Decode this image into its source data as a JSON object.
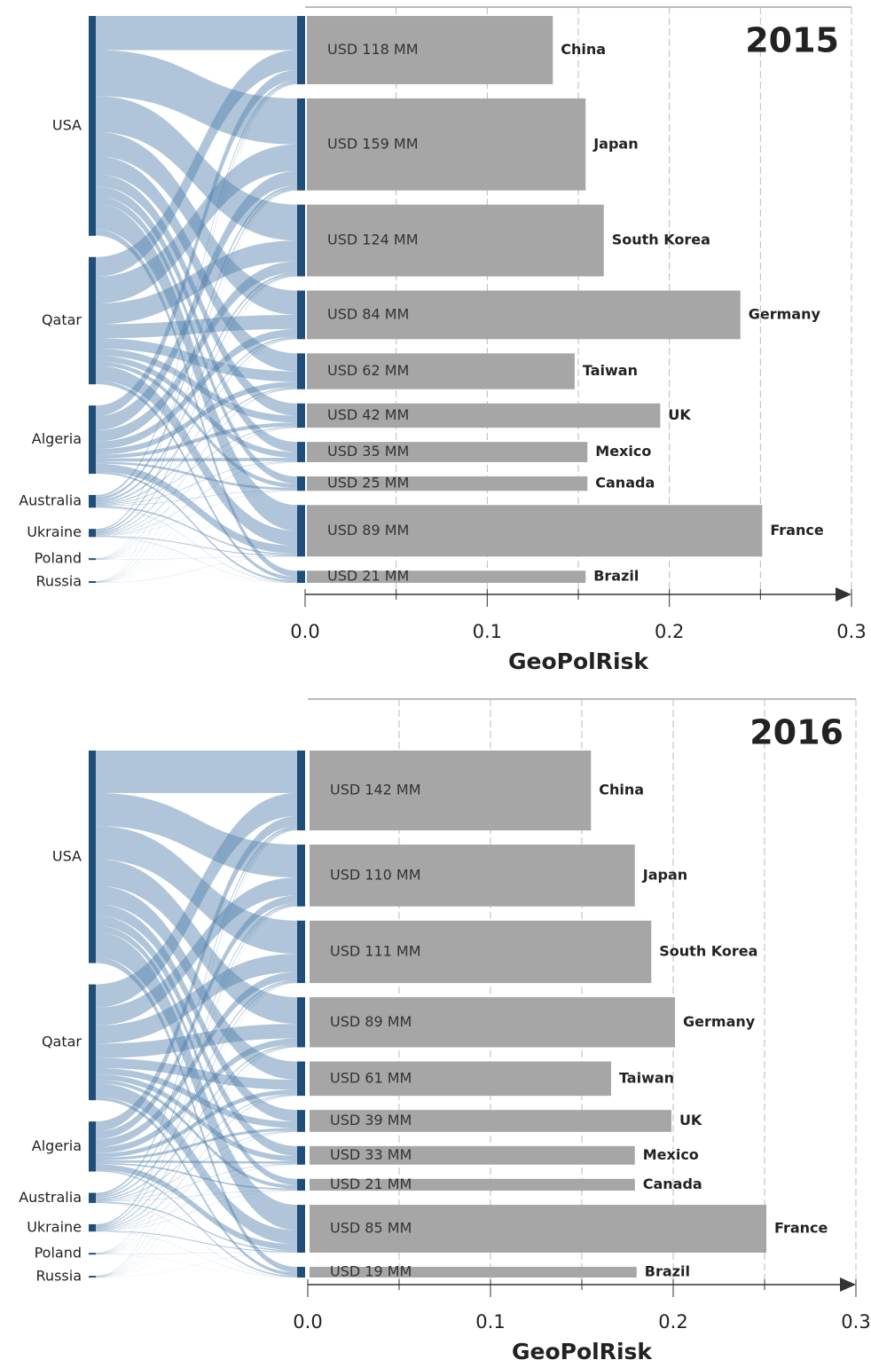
{
  "chart_data": [
    {
      "type": "bar",
      "orientation": "horizontal",
      "title": "2015",
      "categories": [
        "China",
        "Japan",
        "South Korea",
        "Germany",
        "Taiwan",
        "UK",
        "Mexico",
        "Canada",
        "France",
        "Brazil"
      ],
      "values": [
        0.136,
        0.154,
        0.164,
        0.239,
        0.148,
        0.195,
        0.155,
        0.155,
        0.251,
        0.154
      ],
      "imports": {
        "values": [
          118,
          159,
          124,
          84,
          62,
          42,
          35,
          25,
          89,
          21
        ],
        "value_labels": [
          "USD 118 MM",
          "USD 159 MM",
          "USD 124 MM",
          "USD 84 MM",
          "USD 62 MM",
          "USD 42 MM",
          "USD 35 MM",
          "USD 25 MM",
          "USD 89 MM",
          "USD 21 MM"
        ]
      },
      "sources": {
        "names": [
          "USA",
          "Qatar",
          "Algeria",
          "Australia",
          "Ukraine",
          "Poland",
          "Russia"
        ],
        "values": [
          380,
          220,
          118,
          22,
          14,
          3,
          3
        ]
      },
      "xlim": [
        0,
        0.3
      ],
      "xticks": [
        {
          "value": 0,
          "label": "0.0"
        },
        0.1,
        0.2,
        0.3
      ],
      "xminorticks": [
        0.05,
        0.15,
        0.25
      ],
      "xlabel": "GeoPolRisk",
      "color": "#a6a6a6",
      "node_color": "#1f4e79",
      "flow_color": "#4f7fab",
      "grid": true
    },
    {
      "type": "bar",
      "orientation": "horizontal",
      "title": "2016",
      "categories": [
        "China",
        "Japan",
        "South Korea",
        "Germany",
        "Taiwan",
        "UK",
        "Mexico",
        "Canada",
        "France",
        "Brazil"
      ],
      "values": [
        0.155,
        0.179,
        0.188,
        0.201,
        0.166,
        0.199,
        0.179,
        0.179,
        0.251,
        0.18
      ],
      "imports": {
        "values": [
          142,
          110,
          111,
          89,
          61,
          39,
          33,
          21,
          85,
          19
        ],
        "value_labels": [
          "USD 142 MM",
          "USD 110 MM",
          "USD 111 MM",
          "USD 89 MM",
          "USD 61 MM",
          "USD 39 MM",
          "USD 33 MM",
          "USD 21 MM",
          "USD 85 MM",
          "USD 19 MM"
        ]
      },
      "sources": {
        "names": [
          "USA",
          "Qatar",
          "Algeria",
          "Australia",
          "Ukraine",
          "Poland",
          "Russia"
        ],
        "values": [
          378,
          206,
          89,
          18,
          13,
          3,
          3
        ]
      },
      "xlim": [
        0,
        0.3
      ],
      "xticks": [
        {
          "value": 0,
          "label": "0.0"
        },
        0.1,
        0.2,
        0.3
      ],
      "xminorticks": [
        0.05,
        0.15,
        0.25
      ],
      "xlabel": "GeoPolRisk",
      "color": "#a6a6a6",
      "node_color": "#1f4e79",
      "flow_color": "#4f7fab",
      "grid": true
    }
  ]
}
